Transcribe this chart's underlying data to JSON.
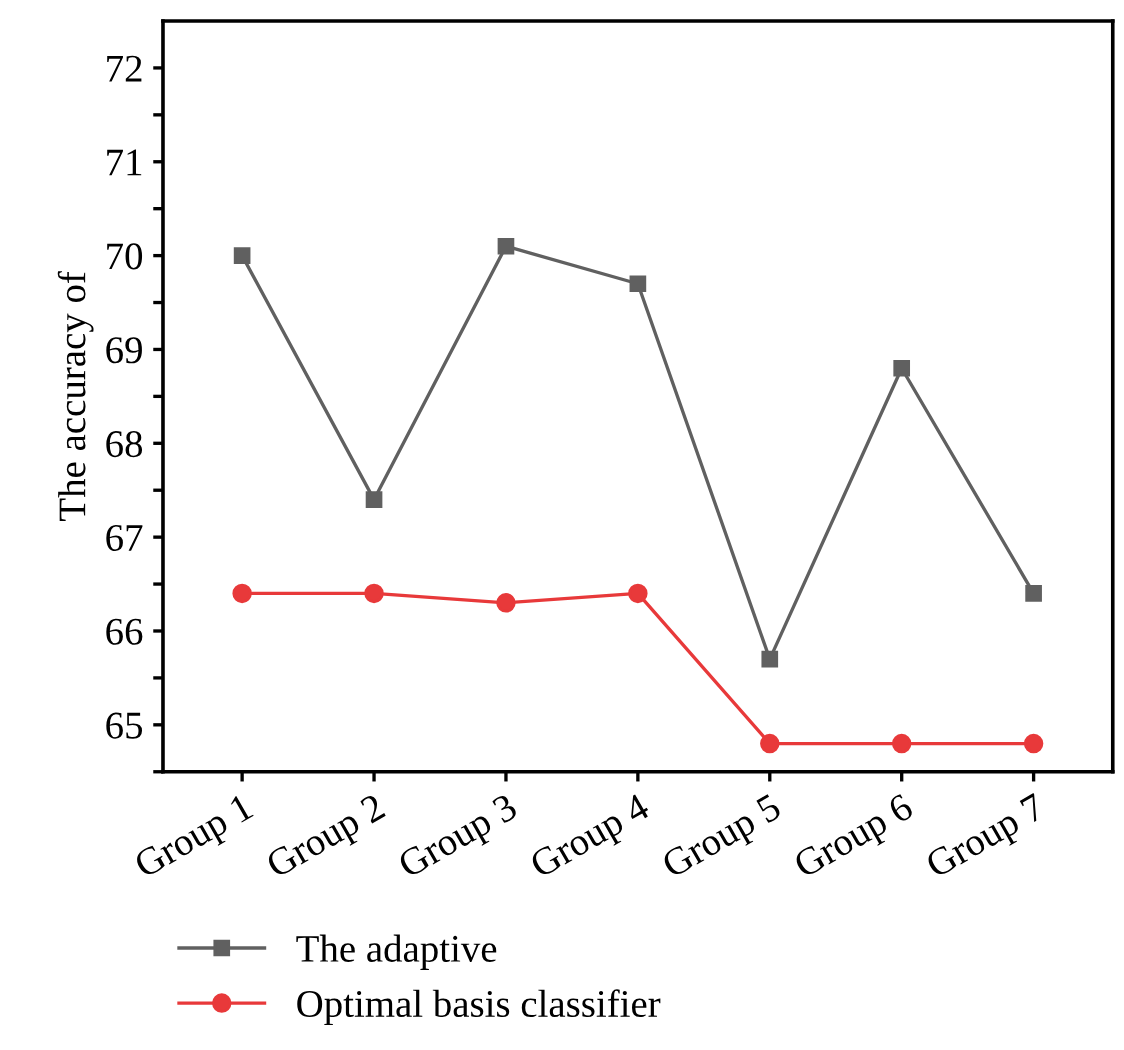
{
  "chart_data": {
    "type": "line",
    "ylabel": "The accuracy of",
    "categories": [
      "Group 1",
      "Group 2",
      "Group 3",
      "Group 4",
      "Group 5",
      "Group 6",
      "Group 7"
    ],
    "ylim": [
      64.5,
      72.5
    ],
    "yticks": [
      {
        "value": 64.5,
        "label": null
      },
      65,
      {
        "value": 65.5,
        "label": null
      },
      66,
      {
        "value": 66.5,
        "label": null
      },
      67,
      {
        "value": 67.5,
        "label": null
      },
      68,
      {
        "value": 68.5,
        "label": null
      },
      69,
      {
        "value": 69.5,
        "label": null
      },
      70,
      {
        "value": 70.5,
        "label": null
      },
      71,
      {
        "value": 71.5,
        "label": null
      },
      72
    ],
    "legend": "bottom left",
    "line_style": "solid",
    "series": [
      {
        "name": "The adaptive",
        "color": "#606060",
        "marker": "square",
        "values": [
          70.0,
          67.4,
          70.1,
          69.7,
          65.7,
          68.8,
          66.4
        ]
      },
      {
        "name": "Optimal basis classifier",
        "color": "#e8393a",
        "marker": "circle",
        "values": [
          66.4,
          66.4,
          66.3,
          66.4,
          64.8,
          64.8,
          64.8
        ]
      }
    ]
  }
}
